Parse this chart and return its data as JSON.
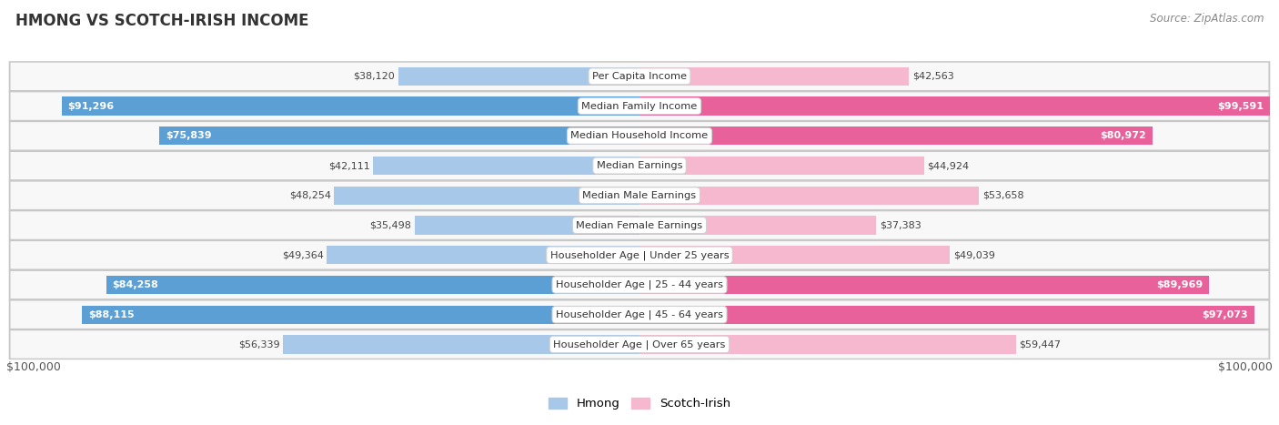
{
  "title": "HMONG VS SCOTCH-IRISH INCOME",
  "source": "Source: ZipAtlas.com",
  "categories": [
    "Per Capita Income",
    "Median Family Income",
    "Median Household Income",
    "Median Earnings",
    "Median Male Earnings",
    "Median Female Earnings",
    "Householder Age | Under 25 years",
    "Householder Age | 25 - 44 years",
    "Householder Age | 45 - 64 years",
    "Householder Age | Over 65 years"
  ],
  "hmong_values": [
    38120,
    91296,
    75839,
    42111,
    48254,
    35498,
    49364,
    84258,
    88115,
    56339
  ],
  "scotch_irish_values": [
    42563,
    99591,
    80972,
    44924,
    53658,
    37383,
    49039,
    89969,
    97073,
    59447
  ],
  "hmong_labels": [
    "$38,120",
    "$91,296",
    "$75,839",
    "$42,111",
    "$48,254",
    "$35,498",
    "$49,364",
    "$84,258",
    "$88,115",
    "$56,339"
  ],
  "scotch_irish_labels": [
    "$42,563",
    "$99,591",
    "$80,972",
    "$44,924",
    "$53,658",
    "$37,383",
    "$49,039",
    "$89,969",
    "$97,073",
    "$59,447"
  ],
  "hmong_color_light": "#a8c8ea",
  "hmong_color_dark": "#5b9fd4",
  "scotch_irish_color_light": "#f5b8cf",
  "scotch_irish_color_dark": "#e8619a",
  "dark_threshold": 60000,
  "max_value": 100000,
  "xlabel_left": "$100,000",
  "xlabel_right": "$100,000",
  "legend_hmong": "Hmong",
  "legend_scotch_irish": "Scotch-Irish",
  "bg_color": "#ffffff",
  "row_bg": "#f2f2f2",
  "row_border": "#d8d8d8"
}
